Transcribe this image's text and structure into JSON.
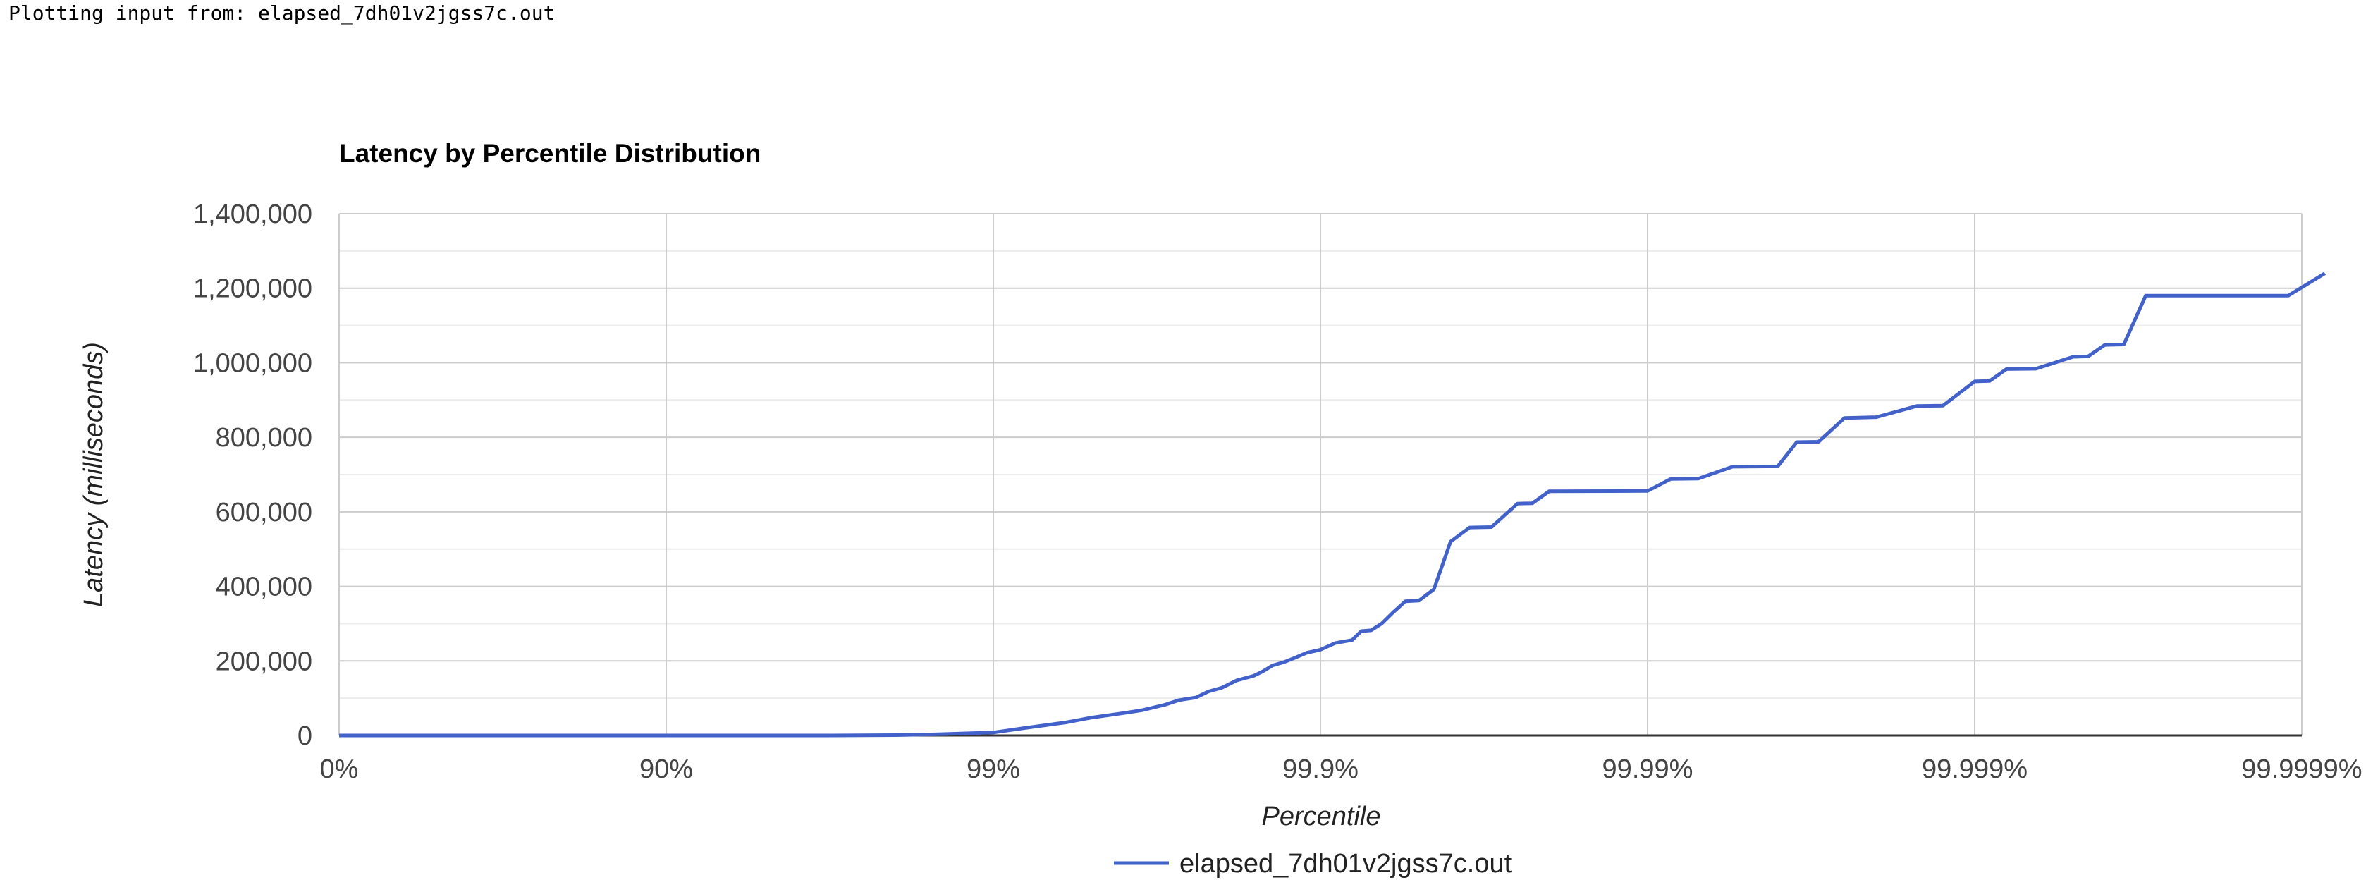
{
  "header": {
    "text": "Plotting input from: elapsed_7dh01v2jgss7c.out"
  },
  "chart_data": {
    "type": "line",
    "title": "Latency by Percentile Distribution",
    "xlabel": "Percentile",
    "ylabel": "Latency (milliseconds)",
    "x_scale": "percentile-log (1/(1-p))",
    "x_tick_labels": [
      "0%",
      "90%",
      "99%",
      "99.9%",
      "99.99%",
      "99.999%",
      "99.9999%"
    ],
    "y_tick_labels": [
      "0",
      "200,000",
      "400,000",
      "600,000",
      "800,000",
      "1,000,000",
      "1,200,000",
      "1,400,000"
    ],
    "ylim": [
      0,
      1400000
    ],
    "grid": true,
    "legend_position": "bottom",
    "color": "#4262c9",
    "series": [
      {
        "name": "elapsed_7dh01v2jgss7c.out",
        "x": [
          "0%",
          "50%",
          "75%",
          "87.5%",
          "90%",
          "93.75%",
          "96.875%",
          "98%",
          "98.5%",
          "99%",
          "99.2%",
          "99.4%",
          "99.5%",
          "99.6%",
          "99.65%",
          "99.7%",
          "99.73%",
          "99.76%",
          "99.78%",
          "99.8%",
          "99.82%",
          "99.84%",
          "99.85%",
          "99.86%",
          "99.87%",
          "99.88%",
          "99.89%",
          "99.9%",
          "99.91%",
          "99.92%",
          "99.925%",
          "99.93%",
          "99.935%",
          "99.94%",
          "99.945%",
          "99.95%",
          "99.955%",
          "99.96%",
          "99.965%",
          "99.97%",
          "99.975%",
          "99.9775%",
          "99.98%",
          "99.99%",
          "99.9915%",
          "99.993%",
          "99.9945%",
          "99.996%",
          "99.9965%",
          "99.997%",
          "99.9975%",
          "99.998%",
          "99.9985%",
          "99.99875%",
          "99.999%",
          "99.9991%",
          "99.9992%",
          "99.99935%",
          "99.9995%",
          "99.99955%",
          "99.9996%",
          "99.99965%",
          "99.9997%",
          "99.99974%",
          "99.99978%",
          "99.99981%",
          "99.99984%",
          "99.99987%",
          "99.99989%",
          "99.999915%"
        ],
        "values": [
          0,
          0,
          0,
          0,
          0,
          0,
          0,
          1000,
          3000,
          8000,
          20000,
          35000,
          48000,
          60000,
          68000,
          82000,
          95000,
          102000,
          118000,
          128000,
          148000,
          160000,
          172000,
          188000,
          196000,
          208000,
          222000,
          230000,
          248000,
          256000,
          280000,
          282000,
          300000,
          330000,
          360000,
          362000,
          392000,
          520000,
          558000,
          559000,
          622000,
          623000,
          655000,
          656000,
          688000,
          689000,
          721000,
          722000,
          787000,
          788000,
          852000,
          854000,
          884000,
          885000,
          950000,
          951000,
          983000,
          984000,
          1016000,
          1017000,
          1048000,
          1049000,
          1180000,
          1180000,
          1180000,
          1180000,
          1180000,
          1180000,
          1180000,
          1240000
        ]
      }
    ]
  }
}
